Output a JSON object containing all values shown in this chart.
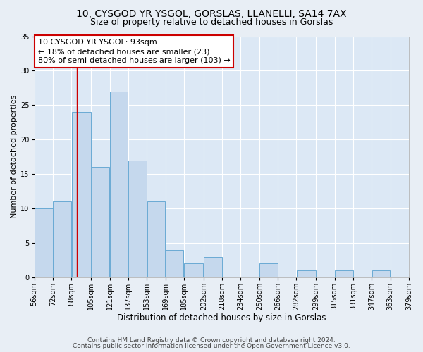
{
  "title1": "10, CYSGOD YR YSGOL, GORSLAS, LLANELLI, SA14 7AX",
  "title2": "Size of property relative to detached houses in Gorslas",
  "xlabel": "Distribution of detached houses by size in Gorslas",
  "ylabel": "Number of detached properties",
  "bar_left_edges": [
    56,
    72,
    88,
    105,
    121,
    137,
    153,
    169,
    185,
    202,
    218,
    234,
    250,
    266,
    282,
    299,
    315,
    331,
    347,
    363
  ],
  "bar_widths": [
    16,
    16,
    17,
    16,
    16,
    16,
    16,
    16,
    17,
    16,
    16,
    16,
    16,
    16,
    17,
    16,
    16,
    16,
    16,
    16
  ],
  "bar_heights": [
    10,
    11,
    24,
    16,
    27,
    17,
    11,
    4,
    2,
    3,
    0,
    0,
    2,
    0,
    1,
    0,
    1,
    0,
    1,
    0
  ],
  "bar_color": "#c5d8ed",
  "bar_edge_color": "#6aaad4",
  "vline_x": 93,
  "vline_color": "#cc0000",
  "ylim": [
    0,
    35
  ],
  "yticks": [
    0,
    5,
    10,
    15,
    20,
    25,
    30,
    35
  ],
  "xtick_labels": [
    "56sqm",
    "72sqm",
    "88sqm",
    "105sqm",
    "121sqm",
    "137sqm",
    "153sqm",
    "169sqm",
    "185sqm",
    "202sqm",
    "218sqm",
    "234sqm",
    "250sqm",
    "266sqm",
    "282sqm",
    "299sqm",
    "315sqm",
    "331sqm",
    "347sqm",
    "363sqm",
    "379sqm"
  ],
  "xtick_positions": [
    56,
    72,
    88,
    105,
    121,
    137,
    153,
    169,
    185,
    202,
    218,
    234,
    250,
    266,
    282,
    299,
    315,
    331,
    347,
    363,
    379
  ],
  "annotation_title": "10 CYSGOD YR YSGOL: 93sqm",
  "annotation_line1": "← 18% of detached houses are smaller (23)",
  "annotation_line2": "80% of semi-detached houses are larger (103) →",
  "annotation_box_color": "#ffffff",
  "annotation_box_edge": "#cc0000",
  "bg_color": "#e8eef5",
  "plot_bg_color": "#dce8f5",
  "footer1": "Contains HM Land Registry data © Crown copyright and database right 2024.",
  "footer2": "Contains public sector information licensed under the Open Government Licence v3.0.",
  "title1_fontsize": 10,
  "title2_fontsize": 9,
  "xlabel_fontsize": 8.5,
  "ylabel_fontsize": 8,
  "tick_fontsize": 7,
  "annotation_fontsize": 8,
  "footer_fontsize": 6.5
}
